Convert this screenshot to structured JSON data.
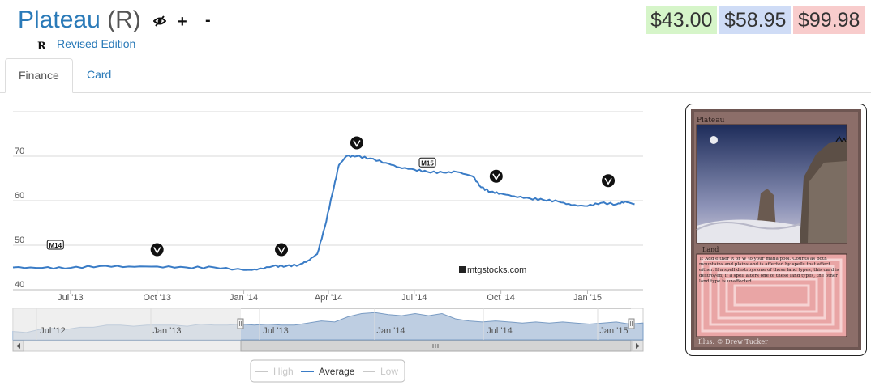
{
  "header": {
    "card_name": "Plateau",
    "rarity": "(R)",
    "set_symbol": "R",
    "set_name": "Revised Edition",
    "icons": [
      "hidden-eye-icon",
      "plus-icon",
      "minus-icon"
    ],
    "plus_label": "+",
    "minus_label": "-"
  },
  "prices": [
    {
      "value": "$43.00",
      "color": "#d6f5c9"
    },
    {
      "value": "$58.95",
      "color": "#cfdcf6"
    },
    {
      "value": "$99.98",
      "color": "#f8cccc"
    }
  ],
  "tabs": [
    {
      "label": "Finance",
      "active": true
    },
    {
      "label": "Card",
      "active": false
    }
  ],
  "chart_data": {
    "type": "line",
    "x_ticks": [
      "Jul '13",
      "Oct '13",
      "Jan '14",
      "Apr '14",
      "Jul '14",
      "Oct '14",
      "Jan '15"
    ],
    "y_ticks": [
      40,
      50,
      60,
      70
    ],
    "ylim": [
      40,
      80
    ],
    "grid": true,
    "series": [
      {
        "name": "Average",
        "color": "#3a7cc6",
        "x": [
          "2013-05-01",
          "2013-06-01",
          "2013-07-01",
          "2013-08-01",
          "2013-09-01",
          "2013-10-01",
          "2013-11-01",
          "2013-12-01",
          "2014-01-01",
          "2014-01-15",
          "2014-02-01",
          "2014-02-15",
          "2014-03-01",
          "2014-03-10",
          "2014-03-20",
          "2014-03-28",
          "2014-04-05",
          "2014-04-12",
          "2014-04-20",
          "2014-05-01",
          "2014-05-15",
          "2014-06-01",
          "2014-06-15",
          "2014-07-01",
          "2014-07-15",
          "2014-08-01",
          "2014-08-15",
          "2014-09-01",
          "2014-09-10",
          "2014-09-20",
          "2014-10-01",
          "2014-10-15",
          "2014-11-01",
          "2014-11-15",
          "2014-12-01",
          "2014-12-15",
          "2015-01-01",
          "2015-01-15",
          "2015-02-01",
          "2015-02-10",
          "2015-02-20"
        ],
        "values": [
          45.0,
          44.9,
          44.9,
          45.3,
          45.2,
          45.2,
          45.0,
          45.0,
          44.4,
          44.5,
          45.3,
          45.3,
          45.6,
          46.5,
          48.0,
          54.0,
          61.5,
          68.0,
          70.0,
          70.0,
          69.5,
          68.5,
          67.5,
          67.0,
          66.5,
          66.3,
          66.5,
          65.5,
          63.0,
          62.0,
          61.6,
          61.0,
          60.5,
          60.2,
          59.8,
          59.0,
          58.8,
          59.5,
          59.2,
          59.8,
          59.2
        ]
      }
    ],
    "events": [
      {
        "x": "2013-06-15",
        "y": 50,
        "icon": "m14-set-icon",
        "label": "M14"
      },
      {
        "x": "2013-10-01",
        "y": 49,
        "icon": "theros-set-icon"
      },
      {
        "x": "2014-02-10",
        "y": 49,
        "icon": "born-of-the-gods-set-icon"
      },
      {
        "x": "2014-05-01",
        "y": 73,
        "icon": "journey-into-nyx-set-icon"
      },
      {
        "x": "2014-07-15",
        "y": 68.5,
        "icon": "m15-set-icon",
        "label": "M15"
      },
      {
        "x": "2014-09-26",
        "y": 65.5,
        "icon": "khans-set-icon"
      },
      {
        "x": "2015-01-23",
        "y": 64.5,
        "icon": "fate-reforged-set-icon"
      }
    ],
    "watermark": "mtgstocks.com",
    "navigator": {
      "x_ticks": [
        "Jul '12",
        "Jan '13",
        "Jul '13",
        "Jan '14",
        "Jul '14",
        "Jan '15"
      ],
      "values": [
        38,
        37,
        40,
        41,
        40,
        42,
        42,
        44,
        44,
        43,
        44,
        44,
        44,
        43,
        45,
        44,
        44,
        45,
        44,
        45,
        44,
        44,
        46,
        48,
        47,
        52,
        55,
        56,
        54,
        53,
        55,
        53,
        55,
        50,
        48,
        47,
        48,
        47,
        46,
        47,
        46,
        47,
        46,
        45,
        46,
        47,
        45,
        46
      ]
    },
    "legend": {
      "position": "bottom-center",
      "items": [
        {
          "name": "High",
          "color": "#c8c8c8",
          "active": false
        },
        {
          "name": "Average",
          "color": "#3a7cc6",
          "active": true
        },
        {
          "name": "Low",
          "color": "#c8c8c8",
          "active": false
        }
      ]
    }
  },
  "card_image": {
    "name": "Plateau",
    "type_line": "Land",
    "rules_text": "T: Add either R or W to your mana pool. Counts as both mountains and plains and is affected by spells that affect either. If a spell destroys one of these land types, this card is destroyed; if a spell alters one of these land types, the other land type is unaffected.",
    "artist": "Illus. © Drew Tucker"
  }
}
